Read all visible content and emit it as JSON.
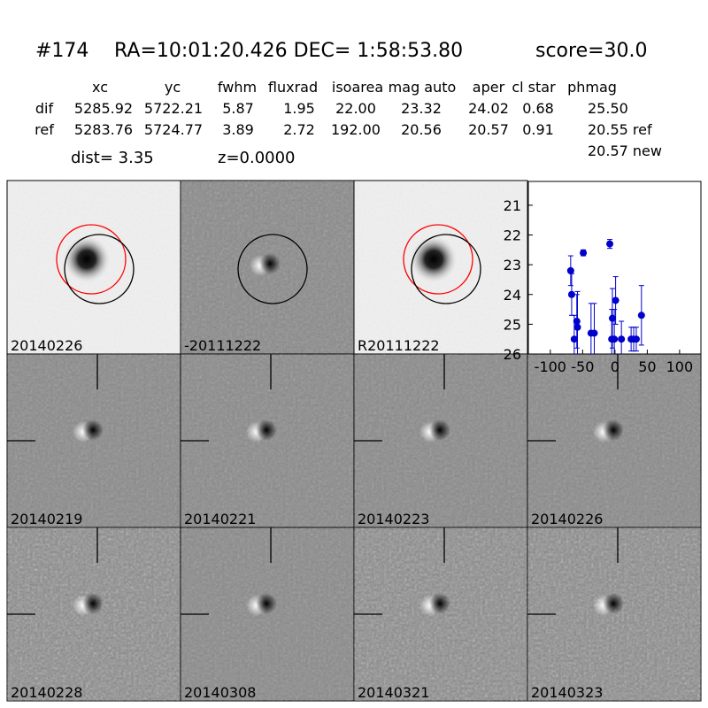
{
  "header": {
    "id": "#174",
    "coords": "RA=10:01:20.426 DEC= 1:58:53.80",
    "score": "score=30.0"
  },
  "table": {
    "columns": [
      "xc",
      "yc",
      "fwhm",
      "fluxrad",
      "isoarea",
      "mag auto",
      "aper",
      "cl star",
      "phmag"
    ],
    "rows": [
      [
        "dif",
        "5285.92",
        "5722.21",
        "5.87",
        "1.95",
        "22.00",
        "23.32",
        "24.02",
        "0.68",
        "25.50"
      ],
      [
        "ref",
        "5283.76",
        "5724.77",
        "3.89",
        "2.72",
        "192.00",
        "20.56",
        "20.57",
        "0.91",
        "20.55 ref"
      ]
    ],
    "extra": "20.57 new"
  },
  "info": {
    "dist": "dist=  3.35",
    "z": "z=0.0000"
  },
  "panels": [
    {
      "label": "20140226"
    },
    {
      "label": "-20111222"
    },
    {
      "label": "R20111222"
    },
    {
      "label": "20140219"
    },
    {
      "label": "20140221"
    },
    {
      "label": "20140223"
    },
    {
      "label": "20140226",
      "label_color": "#ff0000"
    },
    {
      "label": "20140228"
    },
    {
      "label": "20140308"
    },
    {
      "label": "20140321"
    },
    {
      "label": "20140323"
    }
  ],
  "chart_data": {
    "type": "scatter",
    "color": "#0000cc",
    "invert_y": true,
    "xlim": [
      -134,
      133
    ],
    "xticks": [
      -100,
      -50,
      0,
      50,
      100
    ],
    "ylim": [
      20.2,
      26
    ],
    "yticks": [
      21,
      22,
      23,
      24,
      25,
      26
    ],
    "x": [
      -68.5,
      -67,
      -63,
      -59,
      -58,
      -49,
      -37,
      -32,
      -8,
      -5,
      -4,
      1,
      -1,
      10,
      25,
      29,
      33,
      41
    ],
    "values": [
      23.2,
      24.0,
      25.5,
      24.9,
      25.1,
      22.6,
      25.3,
      25.3,
      22.3,
      25.5,
      24.8,
      24.2,
      25.5,
      25.5,
      25.5,
      25.5,
      25.5,
      24.7
    ],
    "errors": [
      0.5,
      0.7,
      0.8,
      0.9,
      1.2,
      0.1,
      1.0,
      1.0,
      0.15,
      1.0,
      1.0,
      0.8,
      1.0,
      0.6,
      0.4,
      0.4,
      0.4,
      1.0
    ]
  }
}
